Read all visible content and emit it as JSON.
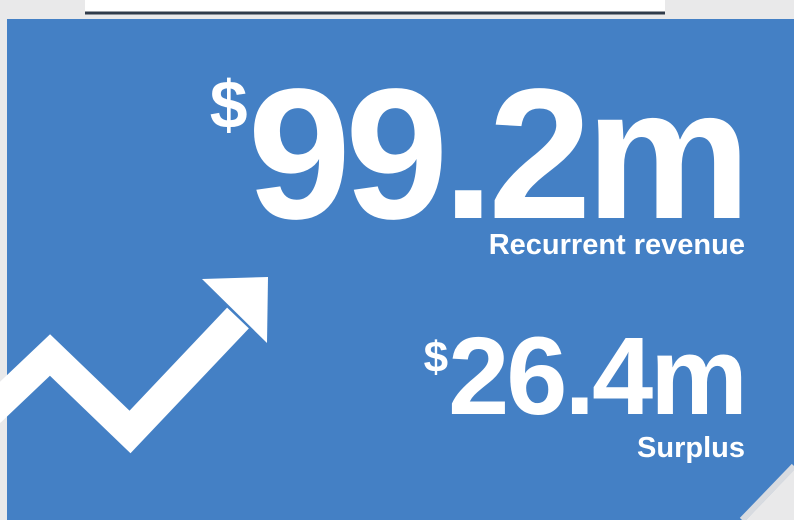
{
  "stats": [
    {
      "currency": "$",
      "amount": "99.2m",
      "label": "Recurrent revenue"
    },
    {
      "currency": "$",
      "amount": "26.4m",
      "label": "Surplus"
    }
  ]
}
